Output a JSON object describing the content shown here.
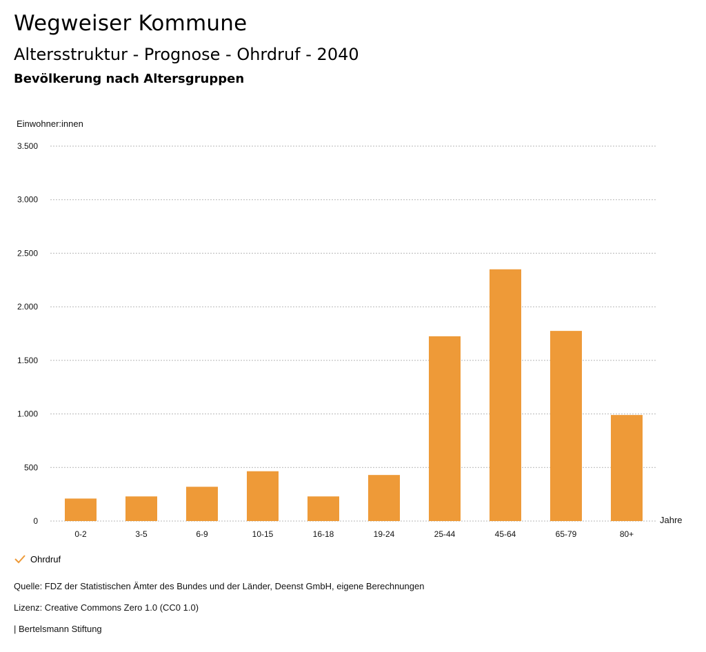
{
  "header": {
    "title": "Wegweiser Kommune",
    "subtitle": "Altersstruktur - Prognose - Ohrdruf - 2040",
    "chart_caption": "Bevölkerung nach Altersgruppen"
  },
  "chart_data": {
    "type": "bar",
    "title": "Bevölkerung nach Altersgruppen",
    "ylabel": "Einwohner:innen",
    "xlabel": "Jahre",
    "categories": [
      "0-2",
      "3-5",
      "6-9",
      "10-15",
      "16-18",
      "19-24",
      "25-44",
      "45-64",
      "65-79",
      "80+"
    ],
    "series": [
      {
        "name": "Ohrdruf",
        "values": [
          210,
          230,
          320,
          465,
          230,
          430,
          1725,
          2350,
          1775,
          990
        ]
      }
    ],
    "ylim": [
      0,
      3500
    ],
    "yticks": [
      0,
      500,
      1000,
      1500,
      2000,
      2500,
      3000,
      3500
    ],
    "ytick_labels": [
      "0",
      "500",
      "1.000",
      "1.500",
      "2.000",
      "2.500",
      "3.000",
      "3.500"
    ],
    "grid": true,
    "legend": "bottom-left",
    "colors": {
      "bar": "#ee9a38",
      "grid": "#b5b5b5",
      "check": "#ee9a38"
    }
  },
  "legend": {
    "entries": [
      {
        "label": "Ohrdruf",
        "icon": "checkmark-icon"
      }
    ]
  },
  "footer": {
    "source": "Quelle: FDZ der Statistischen Ämter des Bundes und der Länder, Deenst GmbH, eigene Berechnungen",
    "license": "Lizenz: Creative Commons Zero 1.0 (CC0 1.0)",
    "publisher": "| Bertelsmann Stiftung"
  }
}
